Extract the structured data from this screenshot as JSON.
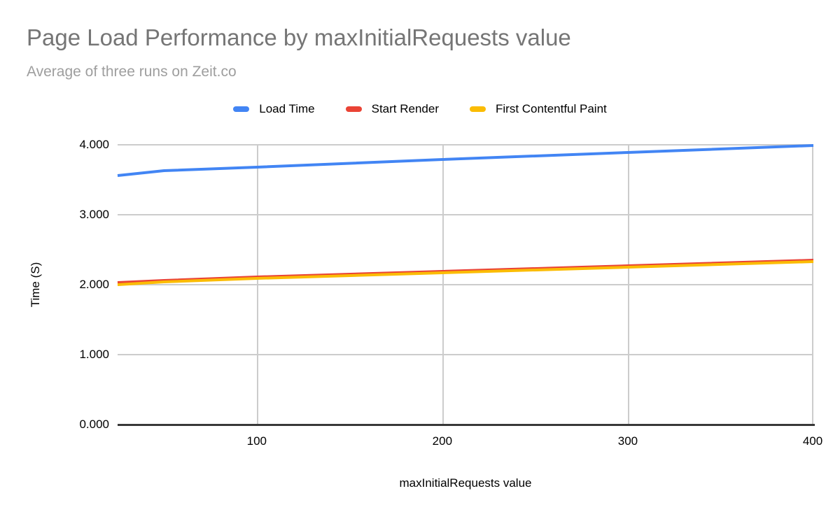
{
  "header": {
    "title": "Page Load Performance by maxInitialRequests value",
    "subtitle": "Average of three runs on Zeit.co"
  },
  "legend": {
    "items": [
      {
        "label": "Load Time",
        "color": "#4285f4"
      },
      {
        "label": "Start Render",
        "color": "#ea4335"
      },
      {
        "label": "First Contentful Paint",
        "color": "#fbbc04"
      }
    ]
  },
  "axes": {
    "y_title": "Time (S)",
    "x_title": "maxInitialRequests value",
    "y_ticks": [
      "4.000",
      "3.000",
      "2.000",
      "1.000",
      "0.000"
    ],
    "x_ticks": [
      "100",
      "200",
      "300",
      "400"
    ]
  },
  "colors": {
    "title": "#757575",
    "subtitle": "#9e9e9e",
    "gridline": "#cccccc",
    "axis_line": "#383838",
    "text": "#000000",
    "background": "#ffffff"
  },
  "chart_data": {
    "type": "line",
    "title": "Page Load Performance by maxInitialRequests value",
    "subtitle": "Average of three runs on Zeit.co",
    "xlabel": "maxInitialRequests value",
    "ylabel": "Time (S)",
    "x": [
      25,
      50,
      100,
      200,
      300,
      400
    ],
    "series": [
      {
        "name": "Load Time",
        "color": "#4285f4",
        "values": [
          3.56,
          3.63,
          3.68,
          3.79,
          3.89,
          3.99
        ]
      },
      {
        "name": "Start Render",
        "color": "#ea4335",
        "values": [
          2.03,
          2.06,
          2.11,
          2.19,
          2.27,
          2.35
        ]
      },
      {
        "name": "First Contentful Paint",
        "color": "#fbbc04",
        "values": [
          2.0,
          2.04,
          2.09,
          2.17,
          2.25,
          2.33
        ]
      }
    ],
    "draw_order": [
      "Load Time",
      "Start Render",
      "First Contentful Paint"
    ],
    "xlim": [
      25,
      400
    ],
    "ylim": [
      0,
      4
    ],
    "y_tick_values": [
      4,
      3,
      2,
      1,
      0
    ],
    "x_tick_values": [
      100,
      200,
      300,
      400
    ],
    "grid": true,
    "legend_position": "top",
    "line_width": 4
  }
}
